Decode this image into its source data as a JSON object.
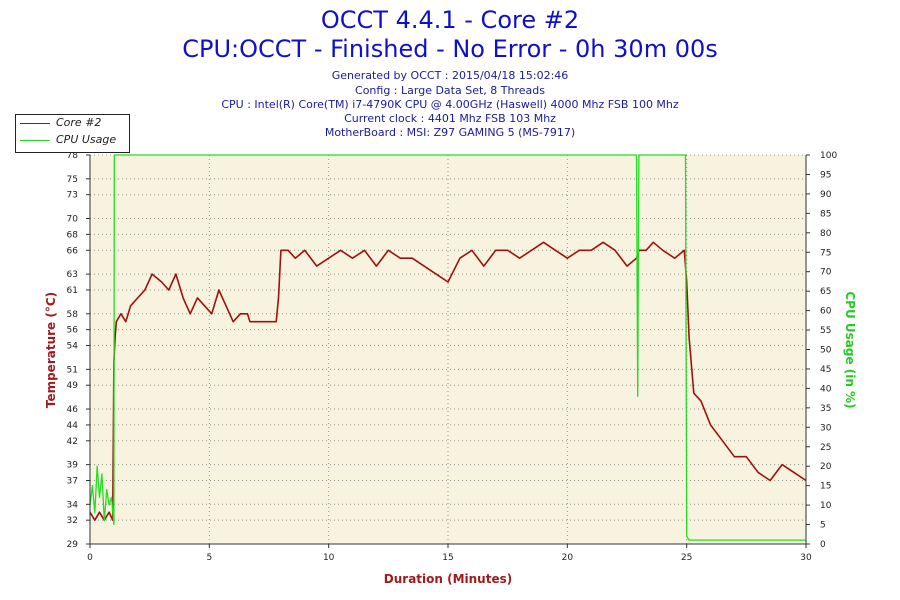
{
  "header": {
    "title": "OCCT 4.4.1 - Core #2",
    "subtitle": "CPU:OCCT - Finished - No Error - 0h 30m 00s",
    "info": [
      "Generated by OCCT : 2015/04/18 15:02:46",
      "Config : Large Data Set, 8 Threads",
      "CPU : Intel(R) Core(TM) i7-4790K CPU @ 4.00GHz (Haswell) 4000 Mhz FSB 100 Mhz",
      "Current clock : 4401 Mhz FSB 103 Mhz",
      "MotherBoard : MSI: Z97 GAMING 5 (MS-7917)"
    ]
  },
  "legend": {
    "items": [
      {
        "label": "Core #2",
        "color": "#a01010"
      },
      {
        "label": "CPU Usage",
        "color": "#22dd22"
      }
    ]
  },
  "colors": {
    "plot_bg": "#f8f3df",
    "grid": "#555555",
    "temp": "#a01010",
    "usage": "#22dd22",
    "temp_axis": "#a01c1c",
    "usage_axis": "#22cc22",
    "xlabel": "#a01c1c"
  },
  "chart_data": {
    "type": "line",
    "title": "OCCT 4.4.1 - Core #2",
    "xlabel": "Duration (Minutes)",
    "ylabel_left": "Temperature (°C)",
    "ylabel_right": "CPU Usage (in %)",
    "xlim": [
      0,
      30
    ],
    "ylim_left": [
      29,
      78
    ],
    "ylim_right": [
      0,
      100
    ],
    "x_ticks": [
      0,
      5,
      10,
      15,
      20,
      25,
      30
    ],
    "y_left_ticks": [
      29,
      32,
      34,
      37,
      39,
      42,
      44,
      46,
      49,
      51,
      54,
      56,
      58,
      61,
      63,
      66,
      68,
      70,
      73,
      75,
      78
    ],
    "y_left_tick_labels": [
      "29",
      "32",
      "34",
      "37",
      "39",
      "42",
      "44",
      "46",
      "49",
      "51",
      "54",
      "56",
      "58",
      "61",
      "63",
      "66",
      "68",
      "70",
      "73",
      "75",
      "78"
    ],
    "y_right_ticks": [
      0,
      5,
      10,
      15,
      20,
      25,
      30,
      35,
      40,
      45,
      50,
      55,
      60,
      65,
      70,
      75,
      80,
      85,
      90,
      95,
      100
    ],
    "grid": true,
    "legend_position": "top-left",
    "series": [
      {
        "name": "Core #2",
        "axis": "left",
        "x": [
          0,
          0.2,
          0.4,
          0.6,
          0.8,
          0.95,
          1.0,
          1.05,
          1.1,
          1.3,
          1.5,
          1.7,
          2.0,
          2.3,
          2.6,
          3.0,
          3.3,
          3.6,
          3.9,
          4.2,
          4.5,
          4.8,
          5.1,
          5.4,
          5.7,
          6.0,
          6.3,
          6.6,
          6.7,
          6.8,
          7.5,
          7.8,
          7.9,
          8.0,
          8.3,
          8.6,
          9.0,
          9.5,
          10.0,
          10.5,
          11.0,
          11.5,
          12.0,
          12.5,
          13.0,
          13.5,
          14.0,
          14.5,
          15.0,
          15.5,
          16.0,
          16.5,
          17.0,
          17.5,
          18.0,
          18.5,
          19.0,
          19.5,
          20.0,
          20.5,
          21.0,
          21.5,
          22.0,
          22.5,
          22.9,
          23.0,
          23.3,
          23.6,
          24.0,
          24.5,
          24.9,
          25.0,
          25.1,
          25.3,
          25.6,
          26.0,
          26.5,
          27.0,
          27.5,
          28.0,
          28.5,
          29.0,
          29.5,
          30.0
        ],
        "y": [
          33,
          32,
          33,
          32,
          33,
          32,
          52,
          55,
          57,
          58,
          57,
          59,
          60,
          61,
          63,
          62,
          61,
          63,
          60,
          58,
          60,
          59,
          58,
          61,
          59,
          57,
          58,
          58,
          57,
          57,
          57,
          57,
          60,
          66,
          66,
          65,
          66,
          64,
          65,
          66,
          65,
          66,
          64,
          66,
          65,
          65,
          64,
          63,
          62,
          65,
          66,
          64,
          66,
          66,
          65,
          66,
          67,
          66,
          65,
          66,
          66,
          67,
          66,
          64,
          65,
          66,
          66,
          67,
          66,
          65,
          66,
          62,
          55,
          48,
          47,
          44,
          42,
          40,
          40,
          38,
          37,
          39,
          38,
          37
        ]
      },
      {
        "name": "CPU Usage",
        "axis": "right",
        "x": [
          0,
          0.1,
          0.2,
          0.3,
          0.4,
          0.5,
          0.6,
          0.7,
          0.8,
          0.9,
          1.0,
          1.02,
          1.1,
          22.9,
          22.95,
          23.0,
          23.05,
          24.95,
          25.0,
          25.1,
          26.0,
          27.0,
          28.0,
          29.0,
          30.0
        ],
        "y": [
          10,
          15,
          8,
          20,
          12,
          18,
          6,
          14,
          10,
          12,
          5,
          100,
          100,
          100,
          38,
          100,
          100,
          100,
          2,
          1,
          1,
          1,
          1,
          1,
          1
        ]
      }
    ]
  }
}
